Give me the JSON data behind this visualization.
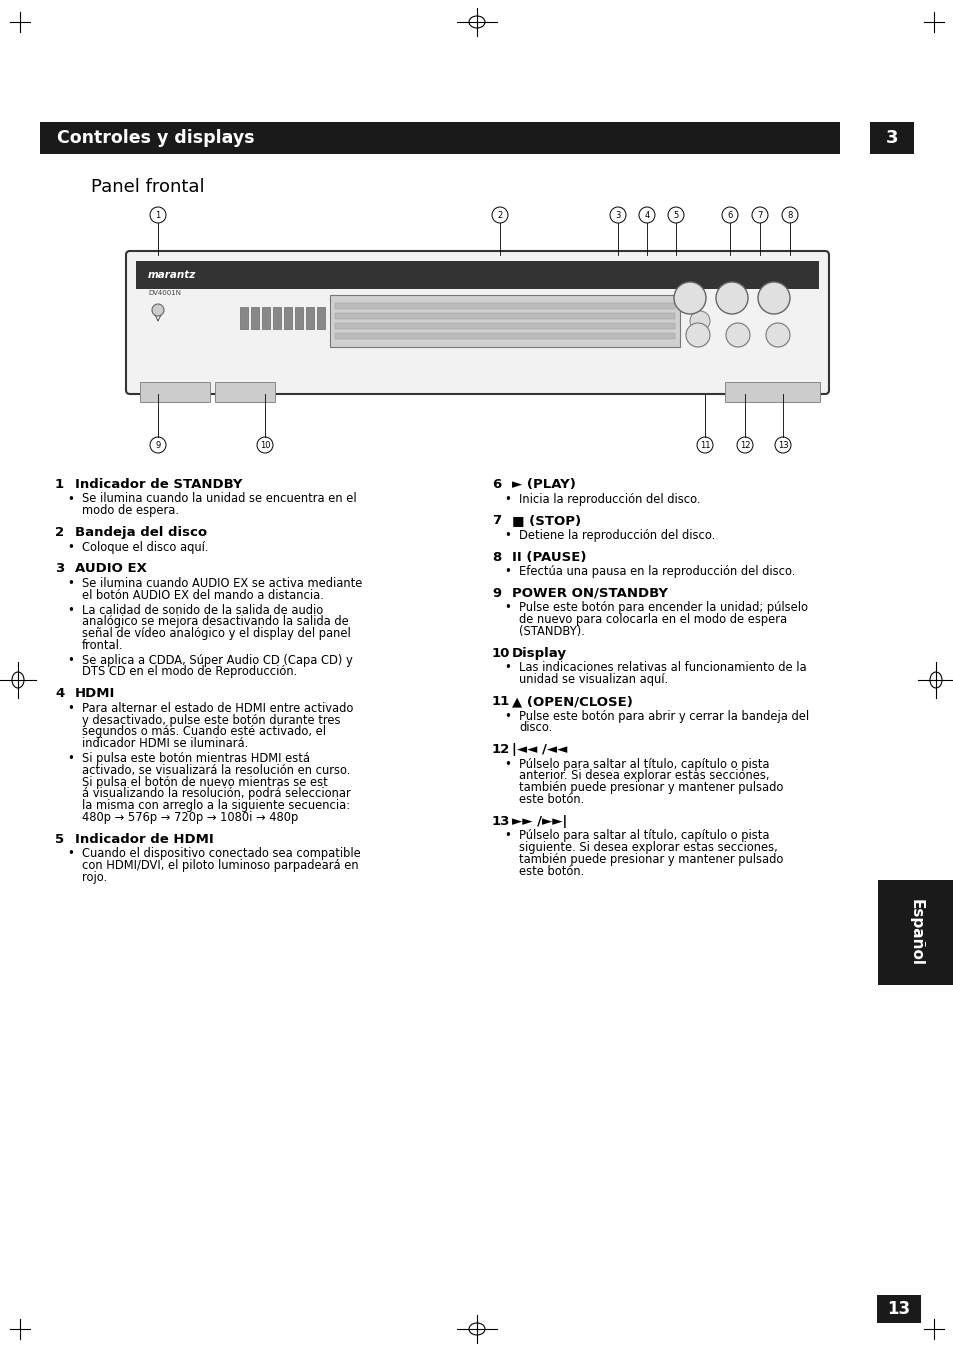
{
  "page_bg": "#ffffff",
  "header_bg": "#1a1a1a",
  "header_text": "Controles y displays",
  "header_num": "3",
  "header_text_color": "#ffffff",
  "subtitle": "Panel frontal",
  "footer_bg": "#1a1a1a",
  "footer_text": "13",
  "footer_text_color": "#ffffff",
  "espanol_bg": "#1a1a1a",
  "espanol_text": "Español",
  "espanol_text_color": "#ffffff",
  "left_col_items": [
    {
      "num": "1",
      "bold": "Indicador de STANDBY",
      "bullets": [
        "Se ilumina cuando la unidad se encuentra en el\nmodo de espera."
      ]
    },
    {
      "num": "2",
      "bold": "Bandeja del disco",
      "bullets": [
        "Coloque el disco aquí."
      ]
    },
    {
      "num": "3",
      "bold": "AUDIO EX",
      "bullets": [
        "Se ilumina cuando AUDIO EX se activa mediante\nel botón AUDIO EX del mando a distancia.",
        "La calidad de sonido de la salida de audio\nanalógico se mejora desactivando la salida de\nseñal de vídeo analógico y el display del panel\nfrontal.",
        "Se aplica a CDDA, Súper Audio CD (Capa CD) y\nDTS CD en el modo de Reproducción."
      ]
    },
    {
      "num": "4",
      "bold": "HDMI",
      "bullets": [
        "Para alternar el estado de HDMI entre activado\ny desactivado, pulse este botón durante tres\nsegundos o más. Cuando esté activado, el\nindicador HDMI se iluminará.",
        "Si pulsa este botón mientras HDMI está\nactivado, se visualizará la resolución en curso.\nSi pulsa el botón de nuevo mientras se est\ná visualizando la resolución, podrá seleccionar\nla misma con arreglo a la siguiente secuencia:\n480p → 576p → 720p → 1080i → 480p"
      ]
    },
    {
      "num": "5",
      "bold": "Indicador de HDMI",
      "bullets": [
        "Cuando el dispositivo conectado sea compatible\ncon HDMI/DVI, el piloto luminoso parpadeará en\nrojo."
      ]
    }
  ],
  "right_col_items": [
    {
      "num": "6",
      "bold": "► (PLAY)",
      "bullets": [
        "Inicia la reproducción del disco."
      ]
    },
    {
      "num": "7",
      "bold": "■ (STOP)",
      "bullets": [
        "Detiene la reproducción del disco."
      ]
    },
    {
      "num": "8",
      "bold": "II (PAUSE)",
      "bullets": [
        "Efectúa una pausa en la reproducción del disco."
      ]
    },
    {
      "num": "9",
      "bold": "POWER ON/STANDBY",
      "bullets": [
        "Pulse este botón para encender la unidad; púlselo\nde nuevo para colocarla en el modo de espera\n(STANDBY)."
      ]
    },
    {
      "num": "10",
      "bold": "Display",
      "bullets": [
        "Las indicaciones relativas al funcionamiento de la\nunidad se visualizan aquí."
      ]
    },
    {
      "num": "11",
      "bold": "▲ (OPEN/CLOSE)",
      "bullets": [
        "Pulse este botón para abrir y cerrar la bandeja del\ndisco."
      ]
    },
    {
      "num": "12",
      "bold": "|◄◄ /◄◄",
      "bullets": [
        "Púlselo para saltar al título, capítulo o pista\nanterior. Si desea explorar estas secciones,\ntambién puede presionar y mantener pulsado\neste botón."
      ]
    },
    {
      "num": "13",
      "bold": "►► /►►|",
      "bullets": [
        "Púlselo para saltar al título, capítulo o pista\nsiguiente. Si desea explorar estas secciones,\ntambién puede presionar y mantener pulsado\neste botón."
      ]
    }
  ]
}
